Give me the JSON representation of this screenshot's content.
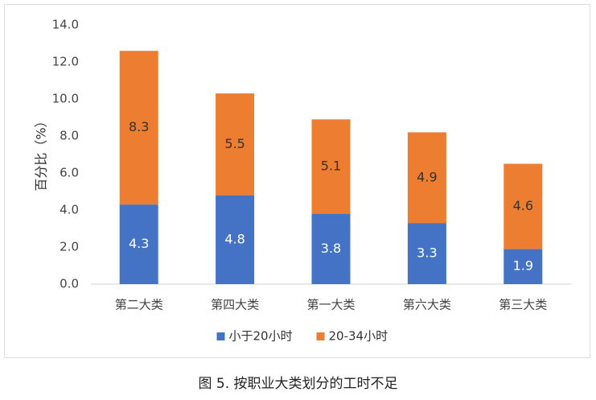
{
  "chart_data": {
    "type": "bar",
    "stacked": true,
    "categories": [
      "第二大类",
      "第四大类",
      "第一大类",
      "第六大类",
      "第三大类"
    ],
    "series": [
      {
        "name": "小于20小时",
        "color": "#4472C4",
        "values": [
          4.3,
          4.8,
          3.8,
          3.3,
          1.9
        ]
      },
      {
        "name": "20-34小时",
        "color": "#ED7D31",
        "values": [
          8.3,
          5.5,
          5.1,
          4.9,
          4.6
        ]
      }
    ],
    "ylabel": "百分比（%）",
    "ylim": [
      0,
      14
    ],
    "yticks": [
      "0.0",
      "2.0",
      "4.0",
      "6.0",
      "8.0",
      "10.0",
      "12.0",
      "14.0"
    ],
    "grid": false,
    "legend_position": "bottom"
  },
  "caption": "图 5. 按职业大类划分的工时不足"
}
